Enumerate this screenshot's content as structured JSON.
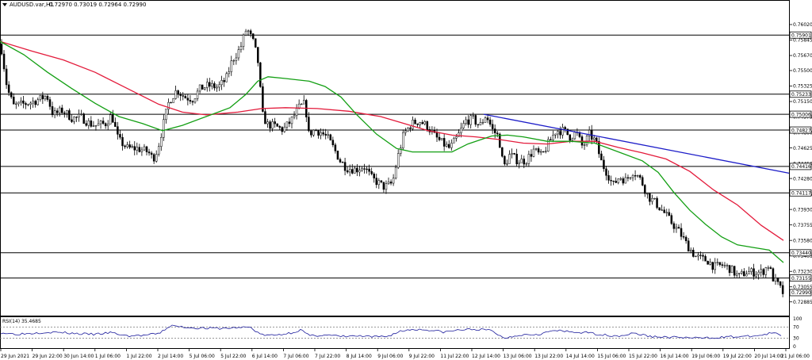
{
  "header": {
    "title": "AUDUSD.var,H1",
    "ohlc": "0.72970 0.73019 0.72964 0.72990"
  },
  "rsi_label": "RSI(14) 35.4685",
  "colors": {
    "background": "#ffffff",
    "candle": "#000000",
    "ma_fast": "#139f13",
    "ma_slow": "#e31b3b",
    "trendline": "#1c1cc8",
    "rsi": "#1c1c9c",
    "hline": "#000000"
  },
  "chart_data": {
    "type": "candlestick",
    "ylim": [
      0.7273,
      0.7619
    ],
    "y_ticks": [
      "0.76020",
      "0.75845",
      "0.75670",
      "0.75500",
      "0.75325",
      "0.75150",
      "0.74975",
      "0.74800",
      "0.74625",
      "0.74450",
      "0.74280",
      "0.74105",
      "0.73930",
      "0.73755",
      "0.73580",
      "0.73405",
      "0.73230",
      "0.73055",
      "0.72885"
    ],
    "levels": [
      {
        "value": 0.75901,
        "label": "0.75901"
      },
      {
        "value": 0.75233,
        "label": "0.75233"
      },
      {
        "value": 0.75006,
        "label": "0.75006"
      },
      {
        "value": 0.74827,
        "label": "0.74827"
      },
      {
        "value": 0.74416,
        "label": "0.74416"
      },
      {
        "value": 0.74117,
        "label": "0.74117"
      },
      {
        "value": 0.7344,
        "label": "0.73440"
      },
      {
        "value": 0.73155,
        "label": "0.73155"
      }
    ],
    "current_price": {
      "value": 0.7299,
      "label": "0.72990"
    },
    "x_labels": [
      "29 Jun 2021",
      "29 Jun 22:00",
      "30 Jun 14:00",
      "1 Jul 06:00",
      "1 Jul 22:00",
      "2 Jul 14:00",
      "5 Jul 06:00",
      "5 Jul 22:00",
      "6 Jul 14:00",
      "7 Jul 06:00",
      "7 Jul 22:00",
      "8 Jul 14:00",
      "9 Jul 06:00",
      "9 Jul 22:00",
      "11 Jul 22:00",
      "12 Jul 14:00",
      "13 Jul 06:00",
      "13 Jul 22:00",
      "14 Jul 14:00",
      "15 Jul 06:00",
      "15 Jul 22:00",
      "16 Jul 14:00",
      "19 Jul 06:00",
      "19 Jul 22:00",
      "20 Jul 14:00",
      "21 Jul 06:00"
    ],
    "close_path": [
      [
        0,
        0.758
      ],
      [
        8,
        0.753
      ],
      [
        16,
        0.751
      ],
      [
        28,
        0.7512
      ],
      [
        38,
        0.7514
      ],
      [
        50,
        0.7518
      ],
      [
        58,
        0.7522
      ],
      [
        66,
        0.75
      ],
      [
        78,
        0.7505
      ],
      [
        90,
        0.7496
      ],
      [
        102,
        0.7497
      ],
      [
        112,
        0.749
      ],
      [
        120,
        0.7488
      ],
      [
        132,
        0.749
      ],
      [
        140,
        0.75
      ],
      [
        148,
        0.7472
      ],
      [
        160,
        0.7462
      ],
      [
        172,
        0.7462
      ],
      [
        186,
        0.7458
      ],
      [
        192,
        0.745
      ],
      [
        198,
        0.7462
      ],
      [
        206,
        0.7493
      ],
      [
        212,
        0.7515
      ],
      [
        222,
        0.7528
      ],
      [
        232,
        0.752
      ],
      [
        242,
        0.7518
      ],
      [
        252,
        0.753
      ],
      [
        262,
        0.7533
      ],
      [
        274,
        0.7531
      ],
      [
        284,
        0.754
      ],
      [
        292,
        0.7562
      ],
      [
        302,
        0.7575
      ],
      [
        310,
        0.7598
      ],
      [
        318,
        0.7583
      ],
      [
        324,
        0.7563
      ],
      [
        330,
        0.75
      ],
      [
        336,
        0.7489
      ],
      [
        346,
        0.7487
      ],
      [
        356,
        0.7483
      ],
      [
        366,
        0.7493
      ],
      [
        376,
        0.7508
      ],
      [
        384,
        0.7513
      ],
      [
        388,
        0.7478
      ],
      [
        396,
        0.7483
      ],
      [
        404,
        0.748
      ],
      [
        412,
        0.7474
      ],
      [
        420,
        0.7462
      ],
      [
        428,
        0.7448
      ],
      [
        436,
        0.744
      ],
      [
        448,
        0.7438
      ],
      [
        458,
        0.7442
      ],
      [
        468,
        0.7428
      ],
      [
        476,
        0.7423
      ],
      [
        484,
        0.7418
      ],
      [
        494,
        0.7423
      ],
      [
        500,
        0.745
      ],
      [
        508,
        0.7478
      ],
      [
        518,
        0.749
      ],
      [
        528,
        0.7493
      ],
      [
        538,
        0.7487
      ],
      [
        548,
        0.7475
      ],
      [
        558,
        0.7467
      ],
      [
        566,
        0.7462
      ],
      [
        576,
        0.7475
      ],
      [
        586,
        0.7493
      ],
      [
        596,
        0.7495
      ],
      [
        604,
        0.7487
      ],
      [
        612,
        0.75
      ],
      [
        620,
        0.7483
      ],
      [
        628,
        0.7475
      ],
      [
        634,
        0.744
      ],
      [
        642,
        0.7455
      ],
      [
        652,
        0.7448
      ],
      [
        662,
        0.7448
      ],
      [
        672,
        0.746
      ],
      [
        682,
        0.7453
      ],
      [
        692,
        0.747
      ],
      [
        700,
        0.7482
      ],
      [
        710,
        0.7482
      ],
      [
        718,
        0.7475
      ],
      [
        726,
        0.748
      ],
      [
        734,
        0.7463
      ],
      [
        742,
        0.7478
      ],
      [
        750,
        0.747
      ],
      [
        758,
        0.7445
      ],
      [
        766,
        0.7432
      ],
      [
        772,
        0.742
      ],
      [
        780,
        0.743
      ],
      [
        788,
        0.7426
      ],
      [
        798,
        0.7437
      ],
      [
        808,
        0.7425
      ],
      [
        816,
        0.7408
      ],
      [
        826,
        0.74
      ],
      [
        836,
        0.739
      ],
      [
        846,
        0.7378
      ],
      [
        856,
        0.7367
      ],
      [
        866,
        0.7352
      ],
      [
        876,
        0.734
      ],
      [
        884,
        0.7337
      ],
      [
        892,
        0.7335
      ],
      [
        900,
        0.7328
      ],
      [
        910,
        0.733
      ],
      [
        920,
        0.7326
      ],
      [
        930,
        0.7317
      ],
      [
        940,
        0.7322
      ],
      [
        950,
        0.7322
      ],
      [
        960,
        0.7322
      ],
      [
        968,
        0.733
      ],
      [
        974,
        0.7315
      ],
      [
        980,
        0.7308
      ],
      [
        986,
        0.7299
      ]
    ],
    "ma_fast": [
      [
        0,
        0.7583
      ],
      [
        30,
        0.7568
      ],
      [
        60,
        0.7548
      ],
      [
        90,
        0.753
      ],
      [
        120,
        0.7513
      ],
      [
        150,
        0.7498
      ],
      [
        180,
        0.749
      ],
      [
        205,
        0.7482
      ],
      [
        230,
        0.7488
      ],
      [
        260,
        0.7498
      ],
      [
        290,
        0.7508
      ],
      [
        310,
        0.7523
      ],
      [
        325,
        0.7538
      ],
      [
        338,
        0.7543
      ],
      [
        360,
        0.7541
      ],
      [
        390,
        0.7538
      ],
      [
        410,
        0.7532
      ],
      [
        430,
        0.752
      ],
      [
        450,
        0.75
      ],
      [
        475,
        0.7478
      ],
      [
        500,
        0.7462
      ],
      [
        520,
        0.7458
      ],
      [
        550,
        0.7458
      ],
      [
        570,
        0.7458
      ],
      [
        590,
        0.7467
      ],
      [
        620,
        0.7476
      ],
      [
        640,
        0.7477
      ],
      [
        660,
        0.7475
      ],
      [
        690,
        0.747
      ],
      [
        720,
        0.747
      ],
      [
        750,
        0.7468
      ],
      [
        780,
        0.7458
      ],
      [
        810,
        0.7448
      ],
      [
        830,
        0.7435
      ],
      [
        850,
        0.7412
      ],
      [
        870,
        0.7392
      ],
      [
        890,
        0.7376
      ],
      [
        910,
        0.7362
      ],
      [
        930,
        0.7353
      ],
      [
        950,
        0.735
      ],
      [
        970,
        0.7347
      ],
      [
        988,
        0.7333
      ]
    ],
    "ma_slow": [
      [
        0,
        0.7583
      ],
      [
        40,
        0.7572
      ],
      [
        80,
        0.7562
      ],
      [
        120,
        0.7548
      ],
      [
        160,
        0.753
      ],
      [
        200,
        0.7512
      ],
      [
        230,
        0.7503
      ],
      [
        260,
        0.75
      ],
      [
        300,
        0.7503
      ],
      [
        330,
        0.7507
      ],
      [
        360,
        0.7508
      ],
      [
        400,
        0.7507
      ],
      [
        440,
        0.7504
      ],
      [
        480,
        0.7498
      ],
      [
        510,
        0.749
      ],
      [
        540,
        0.7482
      ],
      [
        570,
        0.7477
      ],
      [
        600,
        0.7475
      ],
      [
        630,
        0.7472
      ],
      [
        660,
        0.7468
      ],
      [
        690,
        0.7467
      ],
      [
        720,
        0.747
      ],
      [
        750,
        0.747
      ],
      [
        780,
        0.7463
      ],
      [
        810,
        0.7457
      ],
      [
        840,
        0.745
      ],
      [
        870,
        0.7436
      ],
      [
        900,
        0.7415
      ],
      [
        930,
        0.7398
      ],
      [
        960,
        0.7375
      ],
      [
        988,
        0.7358
      ]
    ],
    "trendline": [
      [
        610,
        0.75006
      ],
      [
        995,
        0.7434
      ]
    ],
    "rsi": {
      "ylim": [
        0,
        100
      ],
      "levels": [
        70,
        30
      ],
      "tick_labels": [
        "100",
        "70",
        "30",
        "0"
      ],
      "values": [
        [
          0,
          50
        ],
        [
          20,
          45
        ],
        [
          40,
          48
        ],
        [
          60,
          52
        ],
        [
          80,
          50
        ],
        [
          100,
          46
        ],
        [
          120,
          44
        ],
        [
          140,
          50
        ],
        [
          160,
          38
        ],
        [
          180,
          40
        ],
        [
          200,
          46
        ],
        [
          215,
          75
        ],
        [
          225,
          72
        ],
        [
          240,
          68
        ],
        [
          260,
          66
        ],
        [
          280,
          65
        ],
        [
          300,
          68
        ],
        [
          315,
          70
        ],
        [
          330,
          42
        ],
        [
          345,
          40
        ],
        [
          365,
          48
        ],
        [
          380,
          60
        ],
        [
          390,
          38
        ],
        [
          410,
          42
        ],
        [
          430,
          36
        ],
        [
          450,
          38
        ],
        [
          470,
          34
        ],
        [
          490,
          38
        ],
        [
          505,
          55
        ],
        [
          520,
          62
        ],
        [
          540,
          60
        ],
        [
          560,
          52
        ],
        [
          580,
          60
        ],
        [
          600,
          62
        ],
        [
          620,
          58
        ],
        [
          635,
          30
        ],
        [
          655,
          42
        ],
        [
          680,
          45
        ],
        [
          700,
          58
        ],
        [
          720,
          52
        ],
        [
          740,
          50
        ],
        [
          760,
          42
        ],
        [
          780,
          38
        ],
        [
          800,
          48
        ],
        [
          820,
          36
        ],
        [
          840,
          34
        ],
        [
          860,
          33
        ],
        [
          880,
          30
        ],
        [
          900,
          32
        ],
        [
          920,
          35
        ],
        [
          940,
          36
        ],
        [
          960,
          40
        ],
        [
          975,
          50
        ],
        [
          988,
          35
        ]
      ]
    }
  }
}
